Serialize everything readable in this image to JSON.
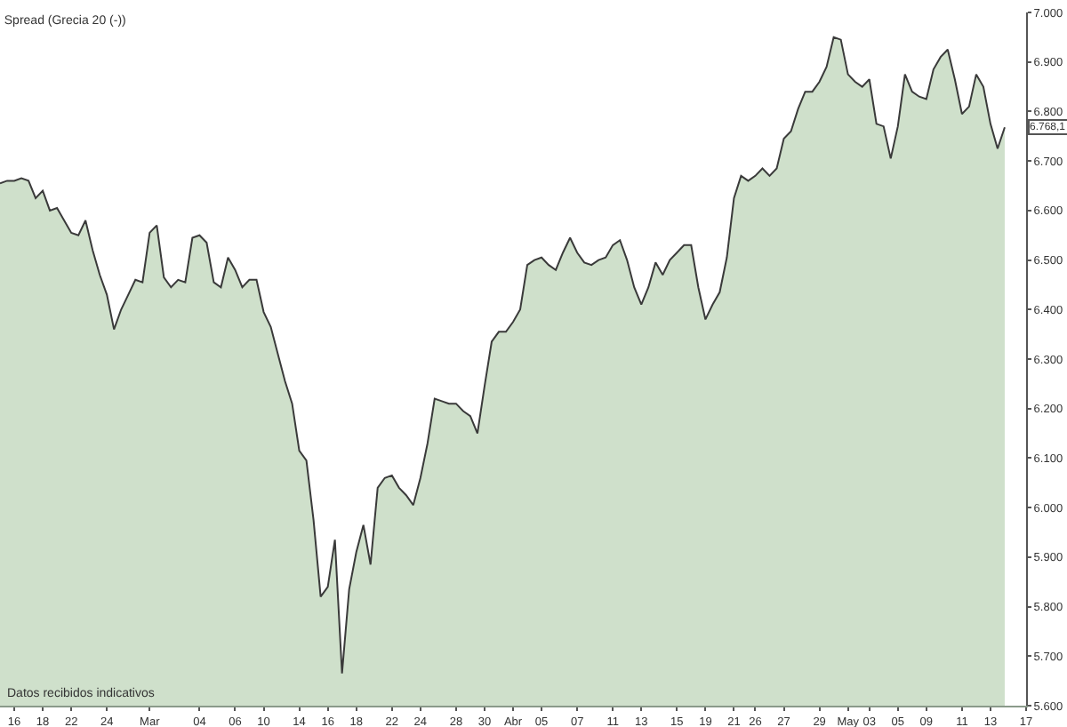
{
  "chart_data": {
    "type": "area",
    "title": "Spread (Grecia 20 (-))",
    "categories": [
      null,
      null,
      "16",
      null,
      null,
      null,
      "18",
      null,
      null,
      null,
      "22",
      null,
      null,
      null,
      null,
      "24",
      null,
      null,
      null,
      null,
      null,
      "Mar",
      null,
      null,
      null,
      null,
      null,
      null,
      "04",
      null,
      null,
      null,
      null,
      "06",
      null,
      null,
      null,
      "10",
      null,
      null,
      null,
      null,
      "14",
      null,
      null,
      null,
      "16",
      null,
      null,
      null,
      "18",
      null,
      null,
      null,
      null,
      "22",
      null,
      null,
      null,
      "24",
      null,
      null,
      null,
      null,
      "28",
      null,
      null,
      null,
      "30",
      null,
      null,
      null,
      "Abr",
      null,
      null,
      null,
      "05",
      null,
      null,
      null,
      null,
      "07",
      null,
      null,
      null,
      null,
      "11",
      null,
      null,
      null,
      "13",
      null,
      null,
      null,
      null,
      "15",
      null,
      null,
      null,
      "19",
      null,
      null,
      null,
      "21",
      null,
      null,
      "26",
      null,
      null,
      null,
      "27",
      null,
      null,
      null,
      null,
      "29",
      null,
      null,
      null,
      "May",
      null,
      null,
      "03",
      null,
      null,
      null,
      "05",
      null,
      null,
      null,
      "09",
      null,
      null,
      null,
      null,
      "11",
      null,
      null,
      null,
      "13",
      null,
      null,
      null,
      null,
      "17"
    ],
    "series": [
      {
        "color": "#cfe0cb",
        "values": [
          6655,
          6660,
          6660,
          6665,
          6660,
          6625,
          6640,
          6600,
          6605,
          6580,
          6555,
          6550,
          6580,
          6520,
          6470,
          6430,
          6360,
          6400,
          6430,
          6460,
          6455,
          6555,
          6570,
          6465,
          6445,
          6460,
          6455,
          6545,
          6550,
          6535,
          6455,
          6445,
          6505,
          6480,
          6445,
          6460,
          6460,
          6395,
          6365,
          6310,
          6255,
          6210,
          6115,
          6095,
          5975,
          5820,
          5840,
          5935,
          5665,
          5835,
          5910,
          5965,
          5885,
          6040,
          6060,
          6065,
          6040,
          6025,
          6005,
          6060,
          6130,
          6220,
          6215,
          6210,
          6210,
          6195,
          6185,
          6150,
          6245,
          6335,
          6355,
          6355,
          6375,
          6400,
          6490,
          6500,
          6505,
          6490,
          6480,
          6515,
          6545,
          6515,
          6495,
          6490,
          6500,
          6505,
          6530,
          6540,
          6500,
          6445,
          6410,
          6445,
          6495,
          6470,
          6500,
          6515,
          6530,
          6530,
          6445,
          6380,
          6410,
          6435,
          6505,
          6625,
          6670,
          6660,
          6670,
          6685,
          6670,
          6685,
          6745,
          6760,
          6805,
          6840,
          6840,
          6860,
          6890,
          6950,
          6945,
          6875,
          6860,
          6850,
          6865,
          6775,
          6770,
          6705,
          6770,
          6875,
          6840,
          6830,
          6825,
          6885,
          6910,
          6925,
          6865,
          6795,
          6810,
          6875,
          6850,
          6775,
          6725,
          6768.1,
          null,
          null,
          null
        ]
      }
    ],
    "ylim": [
      5600,
      7000
    ],
    "yticks": [
      {
        "value": 5600,
        "label": "5.600"
      },
      {
        "value": 5700,
        "label": "5.700"
      },
      {
        "value": 5800,
        "label": "5.800"
      },
      {
        "value": 5900,
        "label": "5.900"
      },
      {
        "value": 6000,
        "label": "6.000"
      },
      {
        "value": 6100,
        "label": "6.100"
      },
      {
        "value": 6200,
        "label": "6.200"
      },
      {
        "value": 6300,
        "label": "6.300"
      },
      {
        "value": 6400,
        "label": "6.400"
      },
      {
        "value": 6500,
        "label": "6.500"
      },
      {
        "value": 6600,
        "label": "6.600"
      },
      {
        "value": 6700,
        "label": "6.700"
      },
      {
        "value": 6800,
        "label": "6.800"
      },
      {
        "value": 6900,
        "label": "6.900"
      },
      {
        "value": 7000,
        "label": "7.000"
      }
    ],
    "annotations": [
      "Datos recibidos indicativos",
      {
        "text": "6.768,1",
        "y": 6768.1
      }
    ]
  }
}
